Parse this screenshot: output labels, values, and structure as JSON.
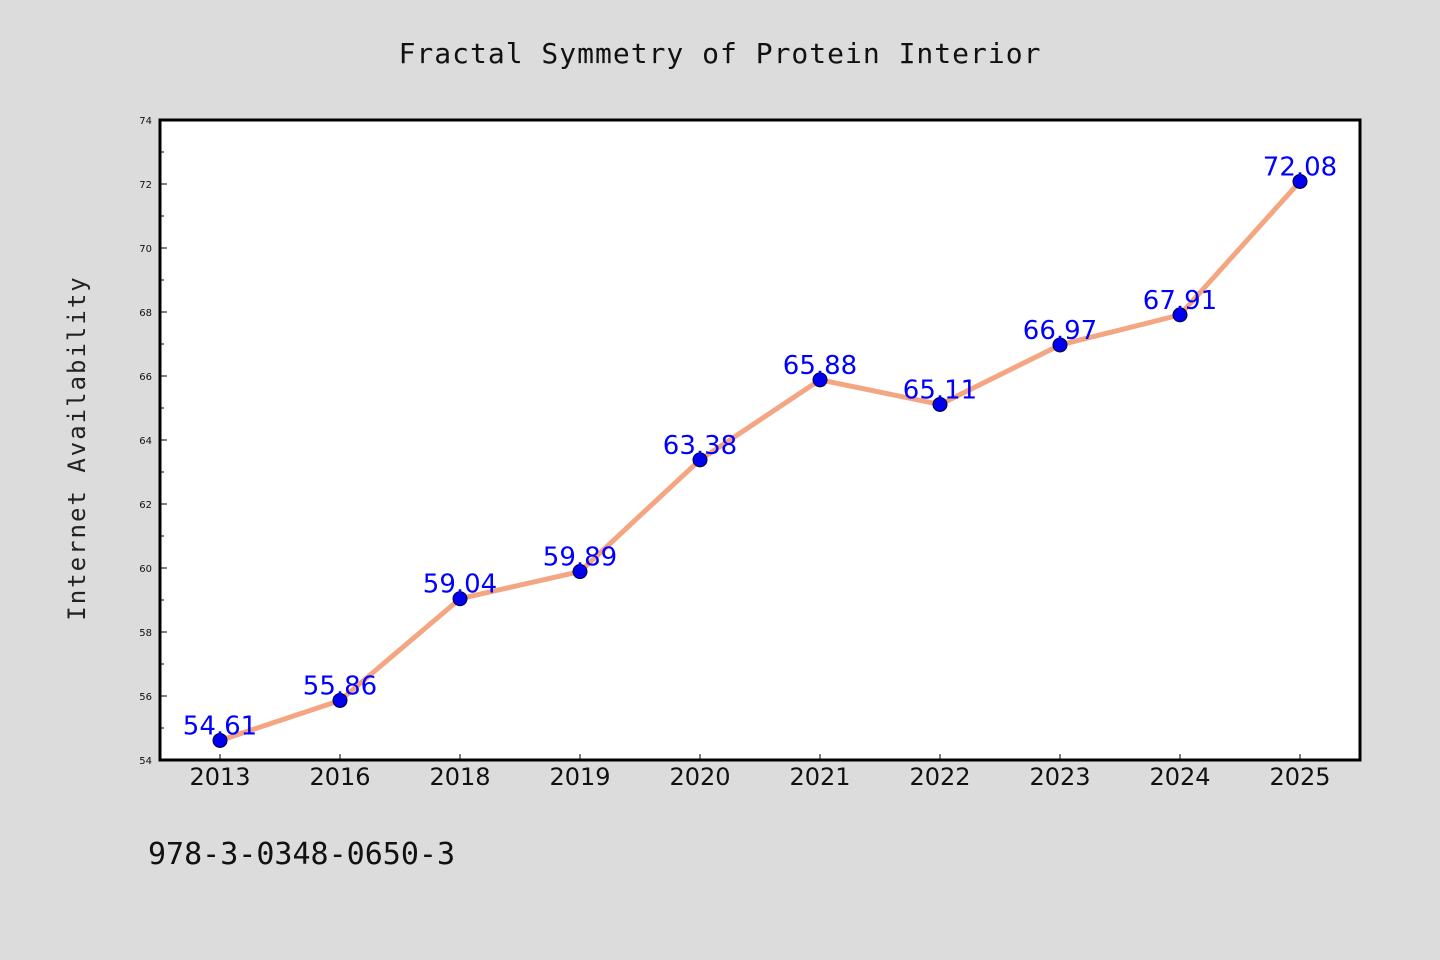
{
  "chart_data": {
    "type": "line",
    "title": "Fractal Symmetry of Protein Interior",
    "xlabel": "",
    "ylabel": "Internet Availability",
    "categories": [
      "2013",
      "2016",
      "2018",
      "2019",
      "2020",
      "2021",
      "2022",
      "2023",
      "2024",
      "2025"
    ],
    "series": [
      {
        "values": [
          54.61,
          55.86,
          59.04,
          59.89,
          63.38,
          65.88,
          65.11,
          66.97,
          67.91,
          72.08
        ],
        "labels": [
          "54.61",
          "55.86",
          "59.04",
          "59.89",
          "63.38",
          "65.88",
          "65.11",
          "66.97",
          "67.91",
          "72.08"
        ]
      }
    ],
    "ylim": [
      54,
      74
    ],
    "yticks": [
      "54",
      "56",
      "58",
      "60",
      "62",
      "64",
      "66",
      "68",
      "70",
      "72",
      "74"
    ],
    "grid": false,
    "legend": "none",
    "colors": {
      "line": "#f4a582",
      "marker": "#0000ee",
      "label": "#0000ff",
      "background": "#dcdcdc",
      "plot_area": "#ffffff"
    }
  },
  "footer": {
    "isbn": "978-3-0348-0650-3"
  }
}
